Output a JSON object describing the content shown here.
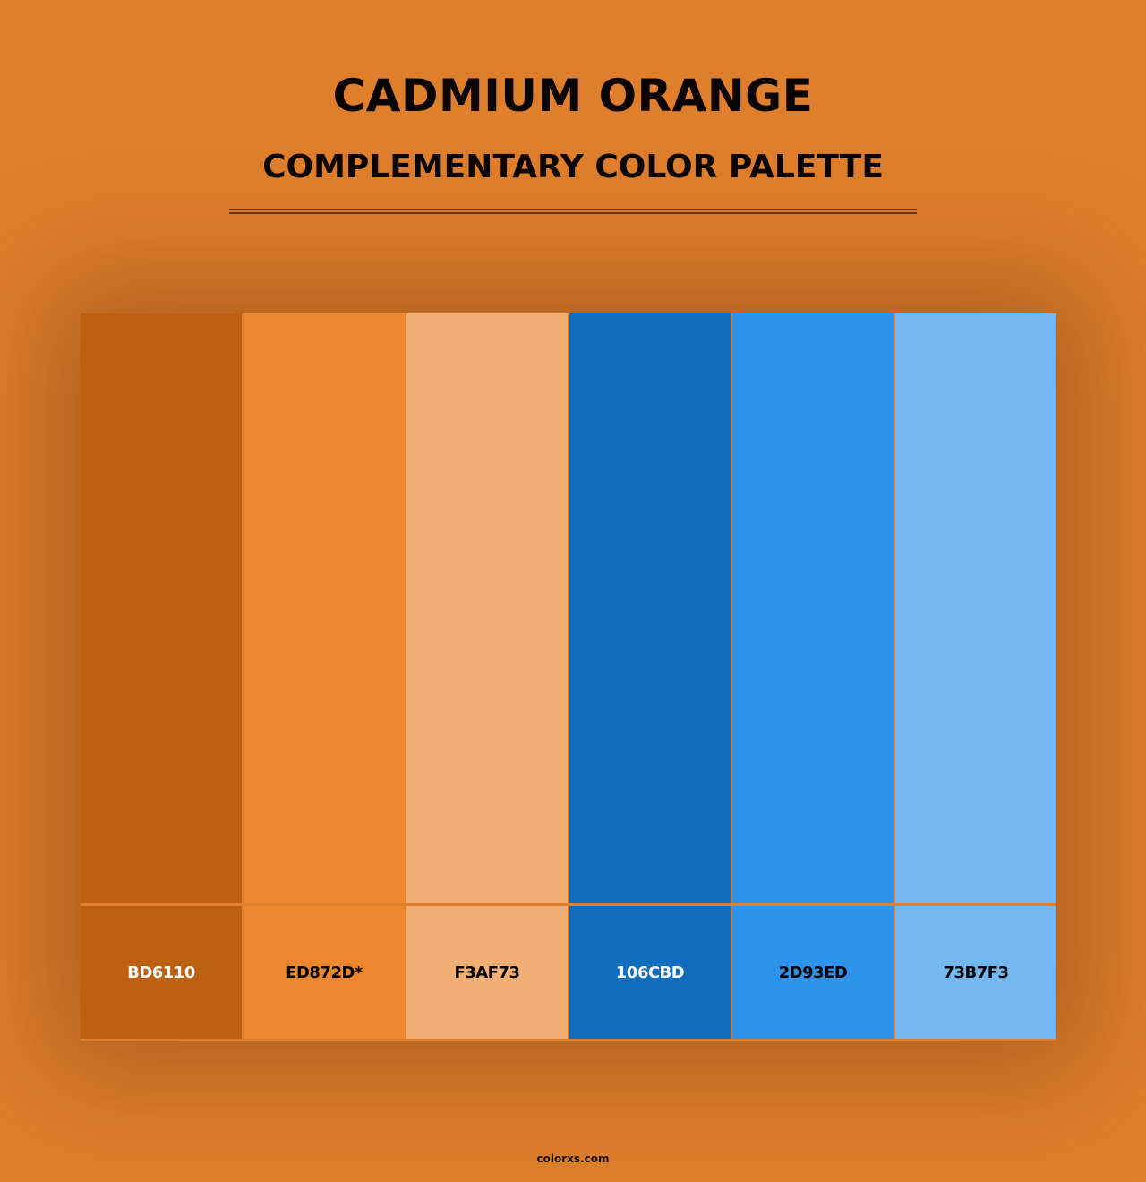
{
  "title": "CADMIUM ORANGE",
  "subtitle": "COMPLEMENTARY COLOR PALETTE",
  "background_color": "#DF7F2D",
  "swatches": [
    {
      "label": "BD6110",
      "color": "#BD6110",
      "text_color": "#FFFFFF"
    },
    {
      "label": "ED872D*",
      "color": "#ED872D",
      "text_color": "#000000"
    },
    {
      "label": "F3AF73",
      "color": "#F3AF73",
      "text_color": "#000000"
    },
    {
      "label": "106CBD",
      "color": "#106CBD",
      "text_color": "#FFFFFF"
    },
    {
      "label": "2D93ED",
      "color": "#2D93ED",
      "text_color": "#000000"
    },
    {
      "label": "73B7F3",
      "color": "#73B7F3",
      "text_color": "#000000"
    }
  ],
  "footer": "colorxs.com"
}
